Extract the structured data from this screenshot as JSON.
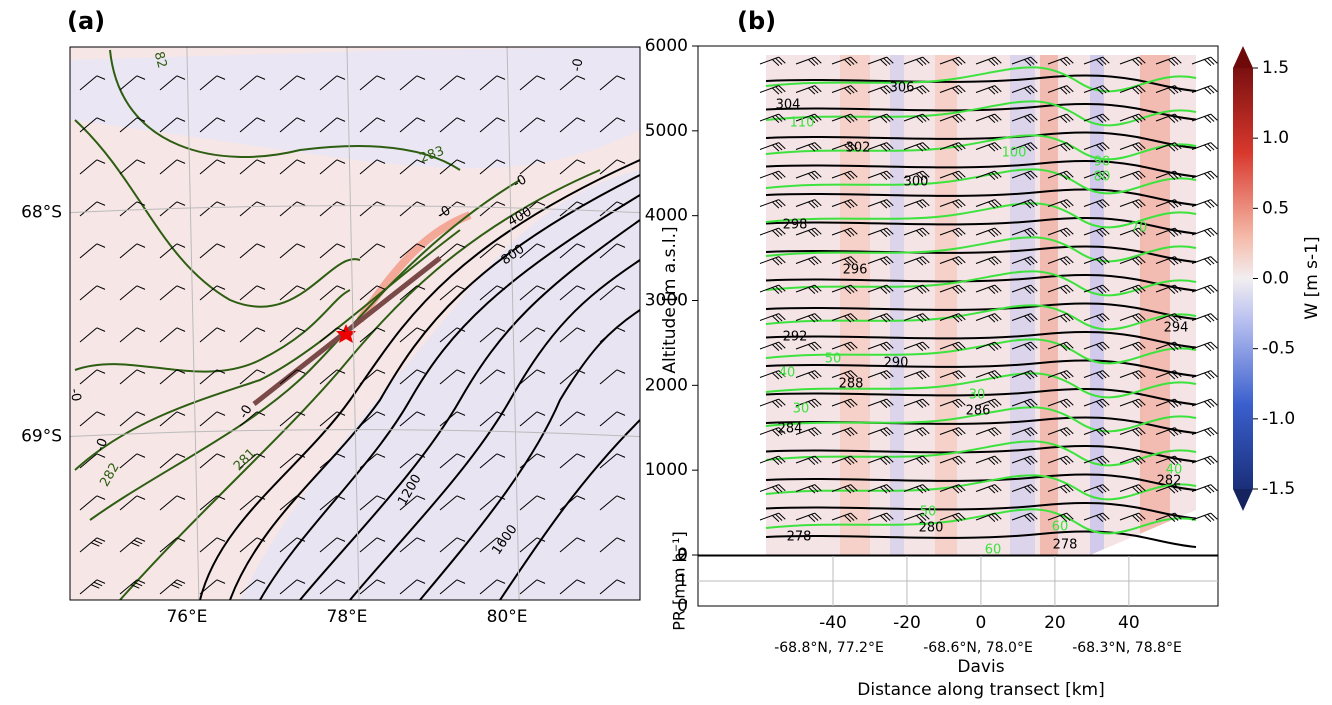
{
  "chart_data": [
    {
      "type": "map",
      "panel_label": "(a)",
      "xlim": [
        74.54,
        81.66
      ],
      "xticks": [
        {
          "value": 76,
          "label": "76°E"
        },
        {
          "value": 78,
          "label": "78°E"
        },
        {
          "value": 80,
          "label": "80°E"
        }
      ],
      "ylim": [
        -69.73,
        -67.26
      ],
      "yticks": [
        {
          "value": -68,
          "label": "68°S"
        },
        {
          "value": -69,
          "label": "69°S"
        }
      ],
      "grid": true,
      "contour_labels": [
        283,
        "-0",
        400,
        800,
        1200,
        1600,
        282,
        281,
        "-0",
        "82",
        "-0",
        "-0",
        "-0",
        "-0"
      ]
    },
    {
      "type": "cross-section",
      "panel_label": "(b)",
      "ylabel": "Altitude [m a.s.l.]",
      "xlim": [
        -76.5,
        64.1
      ],
      "ylim": [
        0,
        6000
      ],
      "yticks": [
        0,
        1000,
        2000,
        3000,
        4000,
        5000,
        6000
      ],
      "theta_labels": [
        304,
        306,
        302,
        300,
        298,
        296,
        294,
        292,
        290,
        288,
        286,
        284,
        282,
        280,
        278,
        278
      ],
      "wind_labels": [
        110,
        100,
        90,
        80,
        70,
        50,
        40,
        30,
        30,
        50,
        60,
        60,
        40
      ],
      "colorbar": {
        "label": "W [m s-1]",
        "lim": [
          -1.5,
          1.5
        ],
        "ticks": [
          {
            "value": 1.5,
            "label": "1.5"
          },
          {
            "value": 1,
            "label": "1.0"
          },
          {
            "value": 0.5,
            "label": "0.5"
          },
          {
            "value": 0,
            "label": "0.0"
          },
          -0.5,
          {
            "value": -1,
            "label": "-1.0"
          },
          {
            "value": -1.5,
            "label": "-1.5"
          }
        ]
      }
    },
    {
      "type": "line",
      "ylabel": "PR [mm h⁻¹]",
      "xlabel": "Distance along transect [km]",
      "xlim": [
        -76.5,
        64.1
      ],
      "xticks": [
        -40,
        -20,
        0,
        20,
        40
      ],
      "ylim": [
        0,
        2
      ],
      "yticks": [
        0,
        1,
        2
      ],
      "grid": true,
      "locations": [
        "-68.8°N, 77.2°E",
        "-68.6°N, 78.0°E",
        "-68.3°N, 78.8°E"
      ],
      "station": "Davis"
    }
  ]
}
